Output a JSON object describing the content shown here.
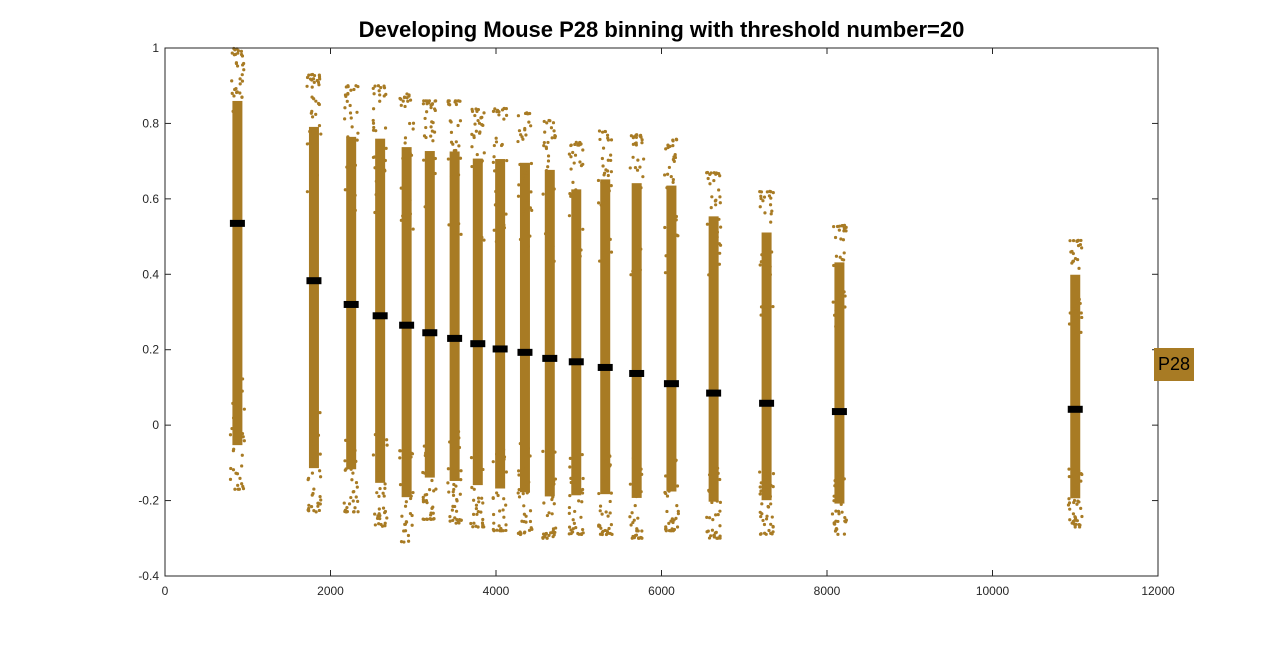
{
  "chart_data": {
    "type": "scatter",
    "title": "Developing Mouse P28 binning with threshold number=20",
    "xlabel": "",
    "ylabel": "",
    "xlim": [
      0,
      12000
    ],
    "ylim": [
      -0.4,
      1
    ],
    "x_ticks": [
      "0",
      "2000",
      "4000",
      "6000",
      "8000",
      "10000",
      "12000"
    ],
    "y_ticks": [
      "-0.4",
      "-0.2",
      "0",
      "0.2",
      "0.4",
      "0.6",
      "0.8",
      "1"
    ],
    "grid": false,
    "legend_position": "right",
    "series": [
      {
        "name": "P28",
        "color": "#A87B24",
        "bins": [
          {
            "x": 875,
            "min": -0.17,
            "max": 1.0,
            "median": 0.535
          },
          {
            "x": 1800,
            "min": -0.23,
            "max": 0.93,
            "median": 0.383
          },
          {
            "x": 2250,
            "min": -0.23,
            "max": 0.9,
            "median": 0.32
          },
          {
            "x": 2600,
            "min": -0.27,
            "max": 0.9,
            "median": 0.29
          },
          {
            "x": 2920,
            "min": -0.31,
            "max": 0.88,
            "median": 0.265
          },
          {
            "x": 3200,
            "min": -0.25,
            "max": 0.86,
            "median": 0.245
          },
          {
            "x": 3500,
            "min": -0.26,
            "max": 0.86,
            "median": 0.23
          },
          {
            "x": 3780,
            "min": -0.27,
            "max": 0.84,
            "median": 0.216
          },
          {
            "x": 4050,
            "min": -0.28,
            "max": 0.84,
            "median": 0.202
          },
          {
            "x": 4350,
            "min": -0.29,
            "max": 0.83,
            "median": 0.193
          },
          {
            "x": 4650,
            "min": -0.3,
            "max": 0.81,
            "median": 0.177
          },
          {
            "x": 4970,
            "min": -0.29,
            "max": 0.75,
            "median": 0.168
          },
          {
            "x": 5320,
            "min": -0.29,
            "max": 0.78,
            "median": 0.153
          },
          {
            "x": 5700,
            "min": -0.3,
            "max": 0.77,
            "median": 0.137
          },
          {
            "x": 6120,
            "min": -0.28,
            "max": 0.76,
            "median": 0.11
          },
          {
            "x": 6630,
            "min": -0.3,
            "max": 0.67,
            "median": 0.085
          },
          {
            "x": 7270,
            "min": -0.29,
            "max": 0.62,
            "median": 0.058
          },
          {
            "x": 8150,
            "min": -0.29,
            "max": 0.53,
            "median": 0.036
          },
          {
            "x": 11000,
            "min": -0.27,
            "max": 0.49,
            "median": 0.042
          }
        ]
      }
    ]
  },
  "legend": {
    "label": "P28",
    "color": "#A87B24"
  }
}
